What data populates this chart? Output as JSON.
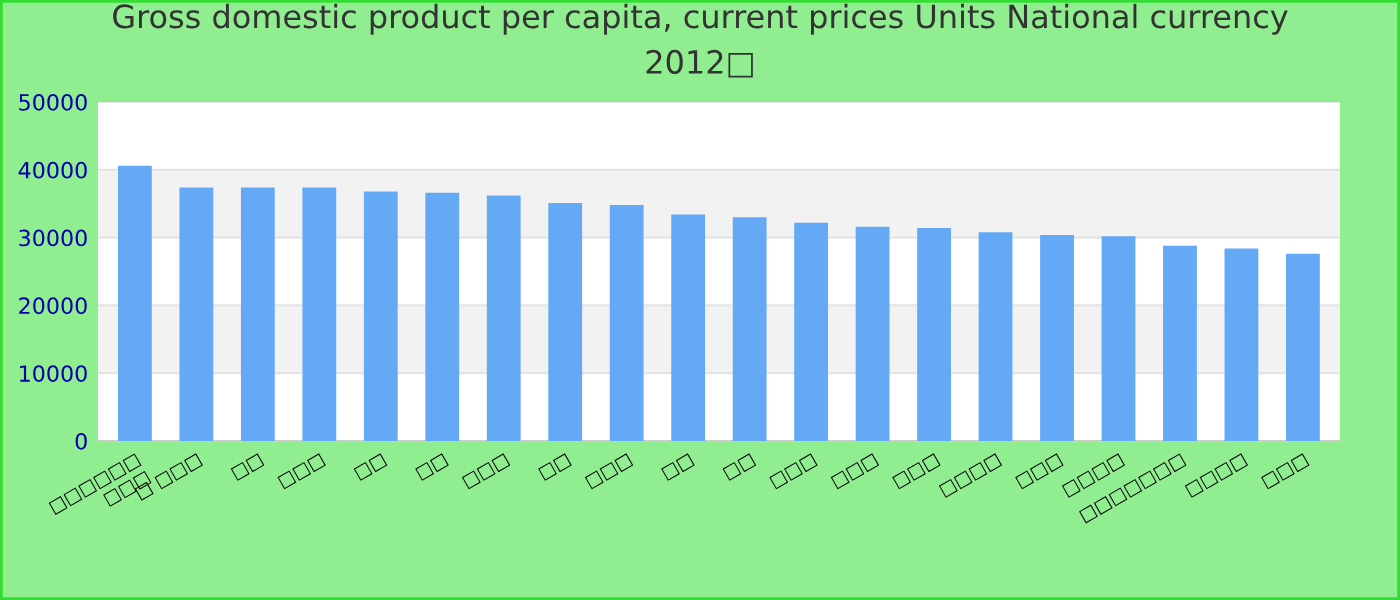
{
  "chart_data": {
    "type": "bar",
    "title": "Gross domestic product per capita, current prices Units National currency\n2012□",
    "categories": [
      "□□□□□□\n□□□",
      "□ □□□",
      "□□",
      "□□□",
      "□□",
      "□□",
      "□□□",
      "□□",
      "□□□",
      "□□",
      "□□",
      "□□□",
      "□□□",
      "□□□",
      "□□□□",
      "□□□",
      "□□□□",
      "□□□□□□□",
      "□□□□",
      "□□□"
    ],
    "values": [
      40600,
      37400,
      37400,
      37400,
      36800,
      36600,
      36200,
      35100,
      34800,
      33400,
      33000,
      32200,
      31600,
      31400,
      30800,
      30400,
      30200,
      28800,
      28400,
      27600
    ],
    "color": "#63a9f5",
    "ylim": [
      0,
      50000
    ],
    "yticks": [
      0,
      10000,
      20000,
      30000,
      40000,
      50000
    ],
    "grid": "y"
  }
}
